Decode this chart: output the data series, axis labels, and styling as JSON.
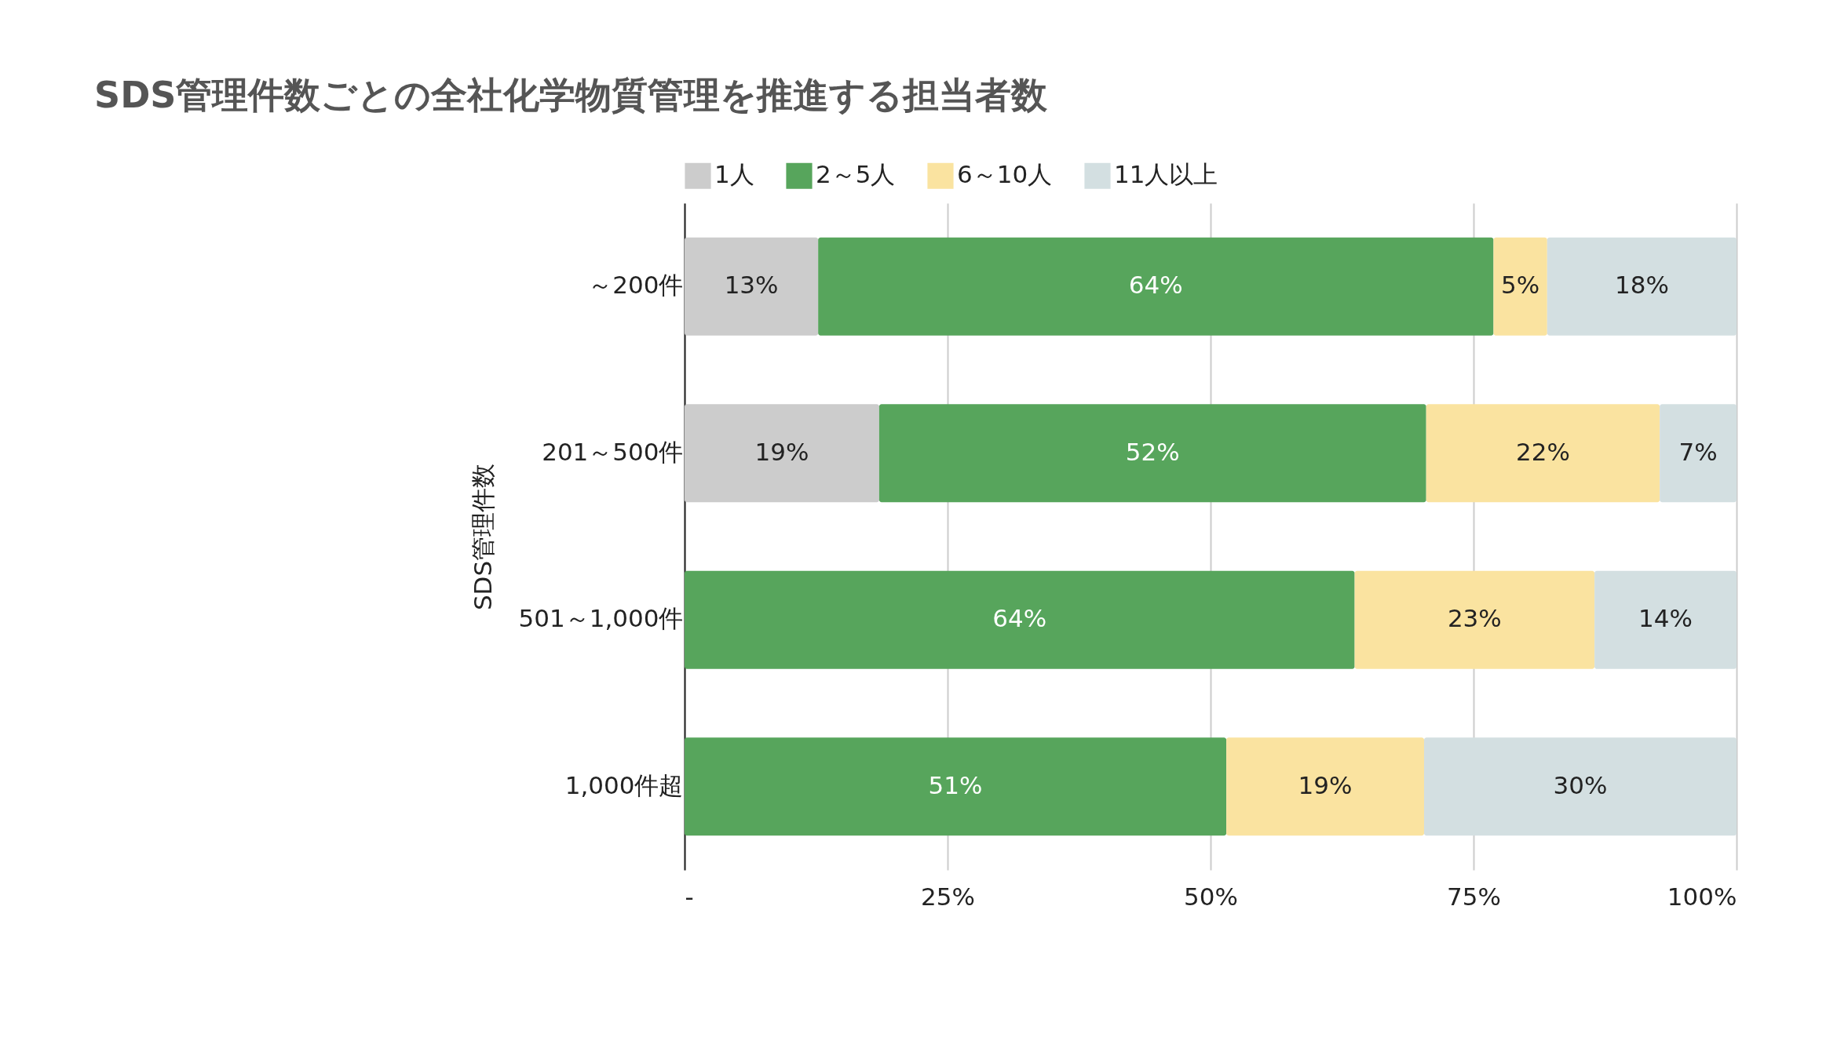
{
  "chart_data": {
    "type": "bar",
    "orientation": "horizontal",
    "stacked": true,
    "title": "SDS管理件数ごとの全社化学物質管理を推進する担当者数",
    "ylabel": "SDS管理件数",
    "categories": [
      "～200件",
      "201～500件",
      "501～1,000件",
      "1,000件超"
    ],
    "series": [
      {
        "name": "1人",
        "color": "#cccccc",
        "values": [
          12.7,
          18.5,
          null,
          null
        ],
        "value_labels": [
          "13%",
          "19%",
          null,
          null
        ]
      },
      {
        "name": "2～5人",
        "color": "#57a55c",
        "values": [
          64.2,
          52.0,
          63.7,
          51.5
        ],
        "value_labels": [
          "64%",
          "52%",
          "64%",
          "51%"
        ]
      },
      {
        "name": "6～10人",
        "color": "#fae3a0",
        "values": [
          5.1,
          22.2,
          22.8,
          18.8
        ],
        "value_labels": [
          "5%",
          "22%",
          "23%",
          "19%"
        ]
      },
      {
        "name": "11人以上",
        "color": "#d3dfe1",
        "values": [
          18.0,
          7.3,
          13.5,
          29.7
        ],
        "value_labels": [
          "18%",
          "7%",
          "14%",
          "30%"
        ]
      }
    ],
    "xlim": [
      0,
      100
    ],
    "xticks": [
      {
        "value": 0,
        "label": "-"
      },
      {
        "value": 25,
        "label": "25%"
      },
      {
        "value": 50,
        "label": "50%"
      },
      {
        "value": 75,
        "label": "75%"
      },
      {
        "value": 100,
        "label": "100%"
      }
    ],
    "grid": "x",
    "legend": "top"
  }
}
